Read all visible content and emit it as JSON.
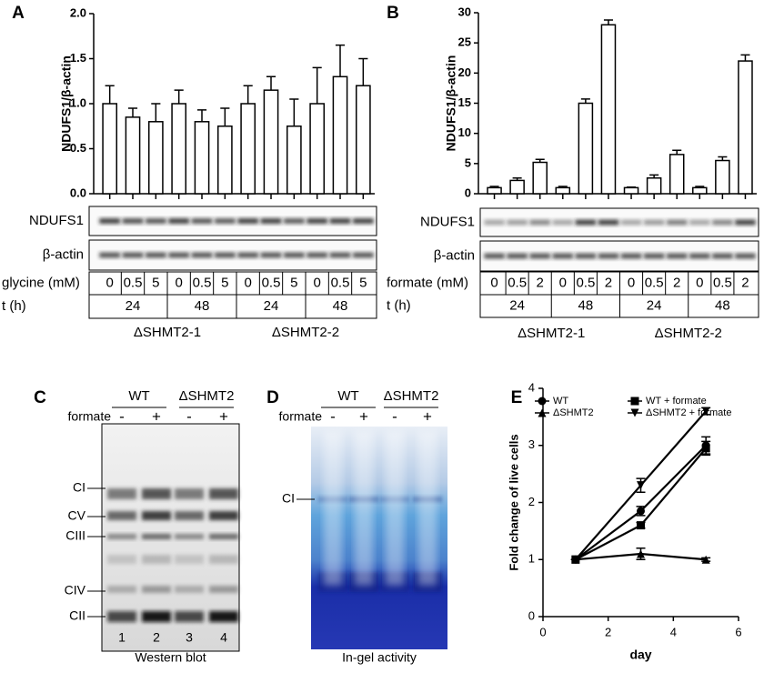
{
  "panel_labels": [
    "A",
    "B",
    "C",
    "D",
    "E"
  ],
  "chart_data": [
    {
      "type": "bar",
      "ylabel": "NDUFS1/β-actin",
      "color": "#ffffff",
      "values": [
        1.0,
        0.85,
        0.8,
        1.0,
        0.8,
        0.75,
        1.0,
        1.15,
        0.75,
        1.0,
        1.3,
        1.2
      ],
      "errors": [
        0.2,
        0.1,
        0.2,
        0.15,
        0.13,
        0.2,
        0.2,
        0.15,
        0.3,
        0.4,
        0.35,
        0.3
      ],
      "ylim": [
        0,
        2
      ],
      "yticks": [
        {
          "value": 0,
          "label": "0.0"
        },
        0.5,
        {
          "value": 1,
          "label": "1.0"
        },
        1.5,
        {
          "value": 2,
          "label": "2.0"
        }
      ],
      "blots": [
        "NDUFS1",
        "β-actin"
      ],
      "table": {
        "rows": [
          {
            "label": "glycine (mM)",
            "cells": [
              "0",
              "0.5",
              "5",
              "0",
              "0.5",
              "5",
              "0",
              "0.5",
              "5",
              "0",
              "0.5",
              "5"
            ]
          },
          {
            "label": "t (h)",
            "cells": [
              "24",
              "48",
              "24",
              "48"
            ]
          }
        ],
        "groups": [
          "ΔSHMT2-1",
          "ΔSHMT2-2"
        ]
      }
    },
    {
      "type": "bar",
      "ylabel": "NDUFS1/β-actin",
      "color": "#ffffff",
      "values": [
        1,
        2.2,
        5.2,
        1,
        15,
        28,
        1,
        2.6,
        6.5,
        1,
        5.5,
        22
      ],
      "errors": [
        0.2,
        0.4,
        0.5,
        0.2,
        0.7,
        0.8,
        0.1,
        0.5,
        0.7,
        0.2,
        0.6,
        1.0
      ],
      "ylim": [
        0,
        30
      ],
      "yticks": [
        0,
        5,
        10,
        15,
        20,
        25,
        30
      ],
      "blots": [
        "NDUFS1",
        "β-actin"
      ],
      "table": {
        "rows": [
          {
            "label": "formate (mM)",
            "cells": [
              "0",
              "0.5",
              "2",
              "0",
              "0.5",
              "2",
              "0",
              "0.5",
              "2",
              "0",
              "0.5",
              "2"
            ]
          },
          {
            "label": "t (h)",
            "cells": [
              "24",
              "48",
              "24",
              "48"
            ]
          }
        ],
        "groups": [
          "ΔSHMT2-1",
          "ΔSHMT2-2"
        ]
      }
    },
    {
      "type": "line",
      "xlabel": "day",
      "ylabel": "Fold change of live cells",
      "x": [
        1,
        3,
        5
      ],
      "xlim": [
        0,
        6
      ],
      "xticks": [
        0,
        2,
        4,
        6
      ],
      "ylim": [
        0,
        4
      ],
      "yticks": [
        0,
        1,
        2,
        3,
        4
      ],
      "series": [
        {
          "name": "WT",
          "marker": "circle",
          "color": "#000000",
          "values": [
            1,
            1.85,
            3.0
          ],
          "errors": [
            0,
            0.08,
            0.15
          ]
        },
        {
          "name": "WT + formate",
          "marker": "square",
          "color": "#000000",
          "values": [
            1,
            1.6,
            2.95
          ],
          "errors": [
            0,
            0.05,
            0.12
          ]
        },
        {
          "name": "ΔSHMT2",
          "marker": "triangle",
          "color": "#000000",
          "values": [
            1,
            1.1,
            1.0
          ],
          "errors": [
            0,
            0.1,
            0.03
          ]
        },
        {
          "name": "ΔSHMT2 + formate",
          "marker": "triangle-down",
          "color": "#000000",
          "values": [
            1,
            2.3,
            3.6
          ],
          "errors": [
            0,
            0.12,
            0.06
          ]
        }
      ]
    }
  ],
  "gels": [
    {
      "groups": [
        "WT",
        "ΔSHMT2"
      ],
      "treatment": "formate",
      "signs": [
        "-",
        "+",
        "-",
        "+"
      ],
      "bands": [
        "CI",
        "CV",
        "CIII",
        "CIV",
        "CII"
      ],
      "lanes": [
        "1",
        "2",
        "3",
        "4"
      ],
      "caption": "Western blot"
    },
    {
      "groups": [
        "WT",
        "ΔSHMT2"
      ],
      "treatment": "formate",
      "signs": [
        "-",
        "+",
        "-",
        "+"
      ],
      "bands": [
        "CI"
      ],
      "caption": "In-gel activity"
    }
  ]
}
